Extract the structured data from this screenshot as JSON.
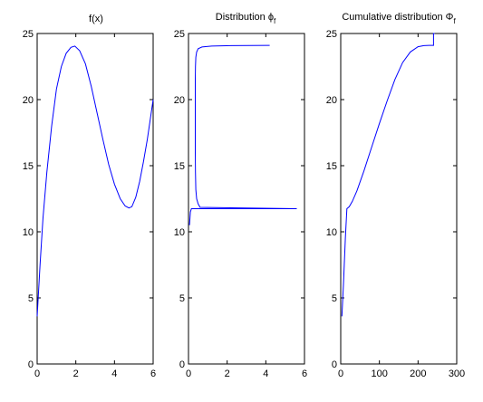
{
  "chart_data": [
    {
      "type": "line",
      "title": "f(x)",
      "xlabel": "",
      "ylabel": "",
      "xlim": [
        0,
        6
      ],
      "ylim": [
        0,
        25
      ],
      "xticks": [
        "0",
        "2",
        "4",
        "6"
      ],
      "yticks": [
        "0",
        "5",
        "10",
        "15",
        "20",
        "25"
      ],
      "grid": false,
      "series": [
        {
          "color": "#0000ff",
          "x": [
            0,
            0.15,
            0.3,
            0.5,
            0.75,
            1.0,
            1.25,
            1.5,
            1.75,
            1.95,
            2.2,
            2.5,
            2.8,
            3.1,
            3.4,
            3.7,
            4.0,
            4.3,
            4.55,
            4.75,
            4.9,
            5.1,
            5.3,
            5.5,
            5.7,
            5.85,
            6.0
          ],
          "y": [
            3.6,
            7.5,
            11.0,
            14.5,
            18.0,
            20.8,
            22.5,
            23.5,
            23.95,
            24.05,
            23.7,
            22.7,
            21.0,
            19.0,
            17.0,
            15.1,
            13.6,
            12.5,
            11.95,
            11.8,
            11.9,
            12.6,
            13.8,
            15.3,
            17.0,
            18.5,
            20.0
          ]
        }
      ]
    },
    {
      "type": "line",
      "title": "Distribution ϕ",
      "title_sub": "f",
      "xlabel": "",
      "ylabel": "",
      "xlim": [
        0,
        6
      ],
      "ylim": [
        0,
        25
      ],
      "xticks": [
        "0",
        "2",
        "4",
        "6"
      ],
      "yticks": [
        "0",
        "5",
        "10",
        "15",
        "20",
        "25"
      ],
      "grid": false,
      "series": [
        {
          "color": "#0000ff",
          "x": [
            0.05,
            0.1,
            0.15,
            5.6,
            0.6,
            0.5,
            0.42,
            0.38,
            0.36,
            0.35,
            0.35,
            0.35,
            0.35,
            0.36,
            0.38,
            0.42,
            0.5,
            0.7,
            1.2,
            2.2,
            4.2
          ],
          "y": [
            10.5,
            11.5,
            11.75,
            11.75,
            11.85,
            12.1,
            12.5,
            13.2,
            14.5,
            16.0,
            18.0,
            20.0,
            21.5,
            22.5,
            23.2,
            23.6,
            23.85,
            23.98,
            24.05,
            24.08,
            24.1
          ]
        }
      ]
    },
    {
      "type": "line",
      "title": "Cumulative distribution Φ",
      "title_sub": "f",
      "xlabel": "",
      "ylabel": "",
      "xlim": [
        0,
        300
      ],
      "ylim": [
        0,
        25
      ],
      "xticks": [
        "0",
        "100",
        "200",
        "300"
      ],
      "yticks": [
        "0",
        "5",
        "10",
        "15",
        "20",
        "25"
      ],
      "grid": false,
      "series": [
        {
          "color": "#0000ff",
          "x": [
            3,
            7,
            12,
            16,
            22,
            30,
            42,
            60,
            80,
            100,
            120,
            140,
            160,
            180,
            200,
            215,
            228,
            237,
            240,
            240,
            243
          ],
          "y": [
            3.6,
            6.0,
            9.5,
            11.75,
            11.9,
            12.3,
            13.1,
            14.6,
            16.4,
            18.2,
            19.9,
            21.5,
            22.8,
            23.6,
            24.0,
            24.08,
            24.1,
            24.1,
            24.1,
            25,
            25
          ]
        }
      ]
    }
  ]
}
